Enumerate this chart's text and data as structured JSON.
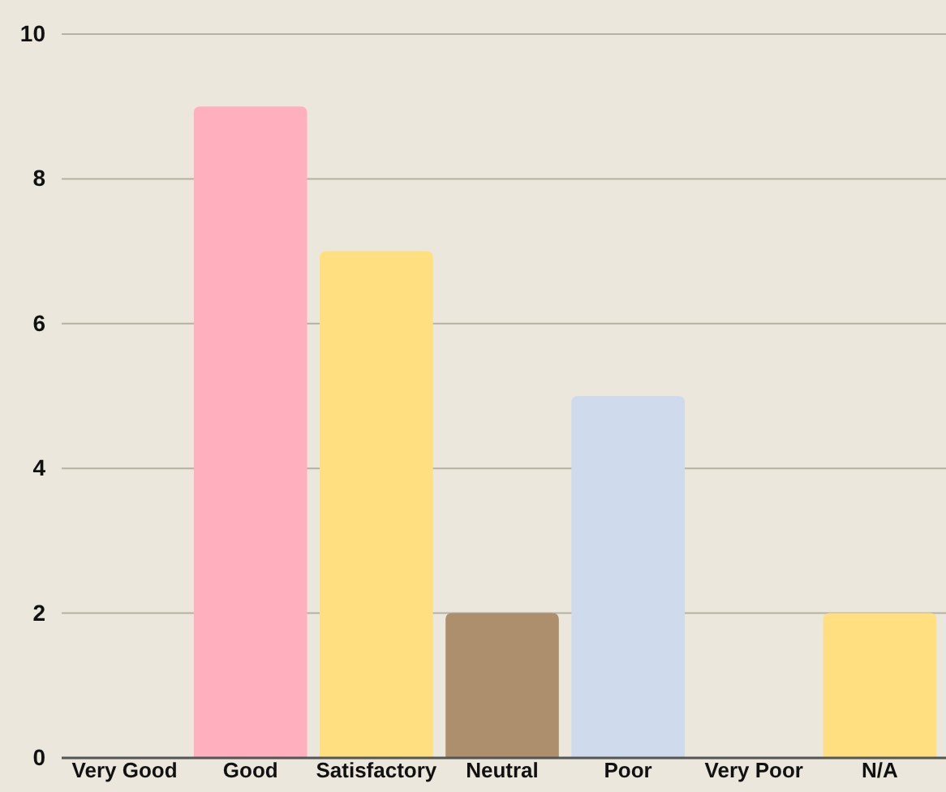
{
  "chart_data": {
    "type": "bar",
    "categories": [
      "Very Good",
      "Good",
      "Satisfactory",
      "Neutral",
      "Poor",
      "Very Poor",
      "N/A"
    ],
    "values": [
      0,
      9,
      7,
      2,
      5,
      0,
      2
    ],
    "colors": [
      "#ffafbd",
      "#ffafbd",
      "#ffdf80",
      "#ad8f6e",
      "#cfdaec",
      "#cfdaec",
      "#ffdf80"
    ],
    "ylim": [
      0,
      10
    ],
    "yticks": [
      0,
      2,
      4,
      6,
      8,
      10
    ],
    "grid": "y"
  }
}
